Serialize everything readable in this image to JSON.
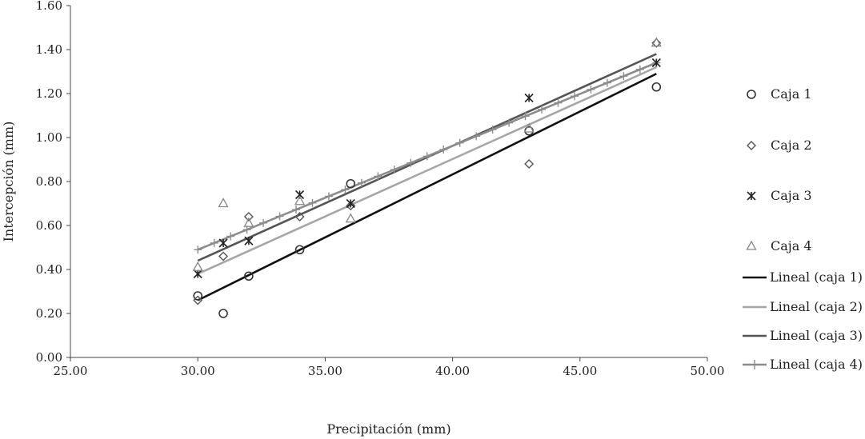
{
  "chart_data": {
    "type": "scatter",
    "xlabel": "Precipitación (mm)",
    "ylabel": "Intercepción (mm)",
    "xlim": [
      25,
      50
    ],
    "ylim": [
      0,
      1.6
    ],
    "x_ticks": [
      "25.00",
      "30.00",
      "35.00",
      "40.00",
      "45.00",
      "50.00"
    ],
    "y_ticks": [
      "0.00",
      "0.20",
      "0.40",
      "0.60",
      "0.80",
      "1.00",
      "1.20",
      "1.40",
      "1.60"
    ],
    "grid": false,
    "legend_position": "right",
    "series": [
      {
        "name": "Caja 1",
        "marker": "circle",
        "color": "#333333",
        "points": [
          [
            30,
            0.28
          ],
          [
            31,
            0.2
          ],
          [
            32,
            0.37
          ],
          [
            34,
            0.49
          ],
          [
            36,
            0.79
          ],
          [
            43,
            1.03
          ],
          [
            48,
            1.23
          ]
        ]
      },
      {
        "name": "Caja 2",
        "marker": "diamond",
        "color": "#555555",
        "points": [
          [
            30,
            0.26
          ],
          [
            31,
            0.46
          ],
          [
            32,
            0.64
          ],
          [
            34,
            0.64
          ],
          [
            36,
            0.69
          ],
          [
            43,
            0.88
          ],
          [
            48,
            1.43
          ]
        ]
      },
      {
        "name": "Caja 3",
        "marker": "asterisk",
        "color": "#222222",
        "points": [
          [
            30,
            0.38
          ],
          [
            31,
            0.52
          ],
          [
            32,
            0.53
          ],
          [
            34,
            0.74
          ],
          [
            36,
            0.7
          ],
          [
            43,
            1.18
          ],
          [
            48,
            1.34
          ]
        ]
      },
      {
        "name": "Caja 4",
        "marker": "triangle",
        "color": "#888888",
        "points": [
          [
            30,
            0.41
          ],
          [
            31,
            0.7
          ],
          [
            32,
            0.61
          ],
          [
            34,
            0.71
          ],
          [
            36,
            0.63
          ],
          [
            43,
            1.04
          ],
          [
            48,
            1.43
          ]
        ]
      }
    ],
    "trendlines": [
      {
        "name": "Lineal (caja 1)",
        "color": "#111111",
        "x": [
          30,
          48
        ],
        "y": [
          0.26,
          1.29
        ]
      },
      {
        "name": "Lineal (caja 2)",
        "color": "#a6a6a6",
        "x": [
          30,
          48
        ],
        "y": [
          0.38,
          1.32
        ]
      },
      {
        "name": "Lineal (caja 3)",
        "color": "#555555",
        "x": [
          30,
          48
        ],
        "y": [
          0.44,
          1.38
        ]
      },
      {
        "name": "Lineal (caja 4)",
        "color": "#8c8c8c",
        "x": [
          30,
          48
        ],
        "y": [
          0.49,
          1.34
        ],
        "plus_markers": true
      }
    ]
  }
}
